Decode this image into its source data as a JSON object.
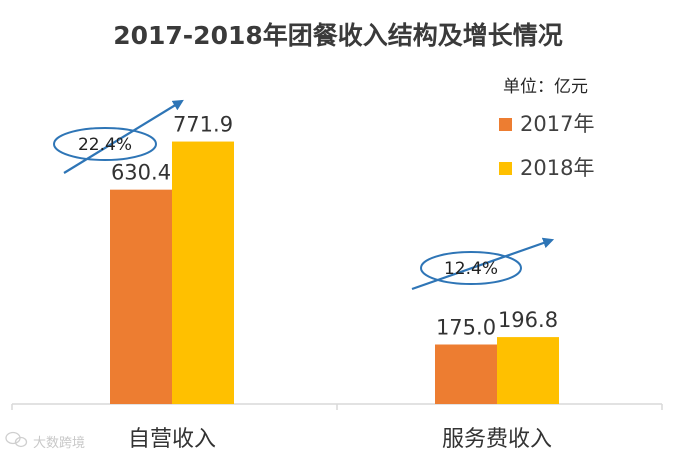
{
  "chart_data": {
    "type": "bar",
    "title": "2017-2018年团餐收入结构及增长情况",
    "unit_label": "单位：亿元",
    "categories": [
      "自营收入",
      "服务费收入"
    ],
    "series": [
      {
        "name": "2017年",
        "values": [
          630.4,
          175.0
        ],
        "value_labels": [
          "630.4",
          "175.0"
        ],
        "color": "#ED7D31"
      },
      {
        "name": "2018年",
        "values": [
          771.9,
          196.8
        ],
        "value_labels": [
          "771.9",
          "196.8"
        ],
        "color": "#FFC000"
      }
    ],
    "growth_annotations": [
      "22.4%",
      "12.4%"
    ],
    "ylim": [
      0,
      1000
    ],
    "grid": false,
    "legend_position": "top-right",
    "axis_color": "#d9d9d9",
    "arrow_color": "#2E75B6"
  },
  "watermark": {
    "text": "大数跨境",
    "icon": "wechat-logo-icon"
  }
}
